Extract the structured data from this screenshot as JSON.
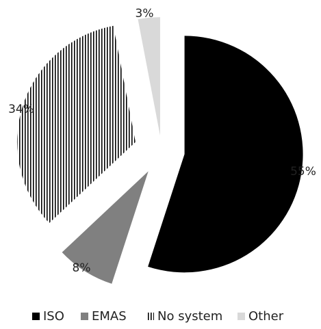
{
  "chart_data": {
    "type": "pie",
    "title": "",
    "exploded": true,
    "legend_position": "bottom",
    "series": [
      {
        "name": "ISO",
        "value": 55,
        "label": "55%",
        "color": "#000000",
        "pattern": "solid"
      },
      {
        "name": "EMAS",
        "value": 8,
        "label": "8%",
        "color": "#808080",
        "pattern": "solid"
      },
      {
        "name": "No system",
        "value": 34,
        "label": "34%",
        "color": "#000000",
        "pattern": "vertical-lines"
      },
      {
        "name": "Other",
        "value": 3,
        "label": "3%",
        "color": "#d9d9d9",
        "pattern": "solid"
      }
    ]
  }
}
